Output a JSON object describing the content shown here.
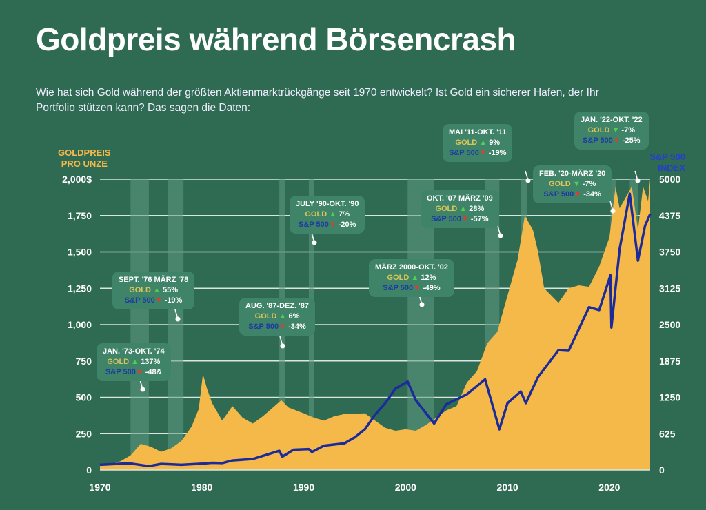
{
  "title": "Goldpreis während Börsencrash",
  "subtitle": "Wie hat sich Gold während der größten Aktienmarktrückgänge seit 1970 entwickelt? Ist Gold ein sicherer Hafen, der Ihr Portfolio stützen kann? Das sagen die Daten:",
  "chart_data": {
    "type": "area",
    "ylabel_left": [
      "GOLDPREIS",
      "PRO UNZE"
    ],
    "ylabel_right": [
      "S&P 500",
      "INDEX"
    ],
    "xlim": [
      1970,
      2024
    ],
    "ylim_left": [
      0,
      2000
    ],
    "ylim_right": [
      0,
      5000
    ],
    "x_ticks": [
      "1970",
      "1980",
      "1990",
      "2000",
      "2010",
      "2020"
    ],
    "left_ticks": [
      "0",
      "250",
      "500",
      "750",
      "1,000",
      "1,250",
      "1,500",
      "1,750",
      "2,000$"
    ],
    "right_ticks": [
      "0",
      "625",
      "1250",
      "1875",
      "2500",
      "3125",
      "3750",
      "4375",
      "5000"
    ],
    "colors": {
      "gold": "#f5b94a",
      "sp500": "#1b2b9c",
      "band": "#5f9a82"
    },
    "series": [
      {
        "name": "Gold",
        "axis": "left",
        "points": [
          [
            1970,
            35
          ],
          [
            1971,
            40
          ],
          [
            1972,
            60
          ],
          [
            1973,
            100
          ],
          [
            1974,
            180
          ],
          [
            1975,
            160
          ],
          [
            1976,
            125
          ],
          [
            1977,
            150
          ],
          [
            1978,
            200
          ],
          [
            1979,
            300
          ],
          [
            1979.7,
            420
          ],
          [
            1980.1,
            660
          ],
          [
            1980.5,
            560
          ],
          [
            1981,
            460
          ],
          [
            1982,
            340
          ],
          [
            1983,
            440
          ],
          [
            1984,
            360
          ],
          [
            1985,
            320
          ],
          [
            1986,
            370
          ],
          [
            1987.8,
            480
          ],
          [
            1988.5,
            430
          ],
          [
            1990,
            390
          ],
          [
            1991,
            360
          ],
          [
            1992,
            340
          ],
          [
            1993,
            370
          ],
          [
            1994,
            385
          ],
          [
            1996,
            390
          ],
          [
            1997,
            340
          ],
          [
            1998,
            290
          ],
          [
            1999,
            270
          ],
          [
            2000,
            280
          ],
          [
            2001,
            270
          ],
          [
            2002,
            310
          ],
          [
            2003,
            360
          ],
          [
            2004,
            410
          ],
          [
            2005,
            440
          ],
          [
            2006,
            600
          ],
          [
            2007,
            680
          ],
          [
            2008,
            870
          ],
          [
            2009,
            950
          ],
          [
            2010,
            1200
          ],
          [
            2011,
            1450
          ],
          [
            2011.7,
            1750
          ],
          [
            2012.5,
            1650
          ],
          [
            2013,
            1500
          ],
          [
            2013.6,
            1250
          ],
          [
            2015,
            1150
          ],
          [
            2016,
            1250
          ],
          [
            2017,
            1270
          ],
          [
            2018,
            1260
          ],
          [
            2019,
            1400
          ],
          [
            2020,
            1600
          ],
          [
            2020.6,
            1950
          ],
          [
            2021,
            1800
          ],
          [
            2022.2,
            1950
          ],
          [
            2022.8,
            1650
          ],
          [
            2023.3,
            1950
          ],
          [
            2023.8,
            1850
          ],
          [
            2024,
            2000
          ]
        ]
      },
      {
        "name": "S&P 500",
        "axis": "right",
        "points": [
          [
            1970,
            90
          ],
          [
            1972.9,
            115
          ],
          [
            1974.8,
            68
          ],
          [
            1976,
            105
          ],
          [
            1978,
            90
          ],
          [
            1980,
            110
          ],
          [
            1981,
            125
          ],
          [
            1982,
            120
          ],
          [
            1983,
            165
          ],
          [
            1985,
            190
          ],
          [
            1987.6,
            330
          ],
          [
            1987.9,
            230
          ],
          [
            1989,
            350
          ],
          [
            1990.5,
            360
          ],
          [
            1990.8,
            310
          ],
          [
            1992,
            420
          ],
          [
            1994,
            460
          ],
          [
            1995,
            560
          ],
          [
            1996,
            700
          ],
          [
            1997,
            950
          ],
          [
            1998,
            1150
          ],
          [
            1999,
            1400
          ],
          [
            2000.2,
            1520
          ],
          [
            2001,
            1200
          ],
          [
            2002.8,
            800
          ],
          [
            2004,
            1130
          ],
          [
            2006,
            1300
          ],
          [
            2007.8,
            1560
          ],
          [
            2009.2,
            700
          ],
          [
            2010,
            1150
          ],
          [
            2011.3,
            1350
          ],
          [
            2011.8,
            1150
          ],
          [
            2013,
            1600
          ],
          [
            2015,
            2060
          ],
          [
            2016,
            2050
          ],
          [
            2018,
            2800
          ],
          [
            2019,
            2750
          ],
          [
            2020.1,
            3350
          ],
          [
            2020.2,
            2450
          ],
          [
            2021,
            3800
          ],
          [
            2022,
            4750
          ],
          [
            2022.8,
            3600
          ],
          [
            2023.5,
            4200
          ],
          [
            2024,
            4400
          ]
        ]
      }
    ],
    "crash_periods": [
      [
        1973,
        1974.8
      ],
      [
        1976.7,
        1978.2
      ],
      [
        1987.6,
        1987.95
      ],
      [
        1990.5,
        1990.8
      ],
      [
        2000.2,
        2002.8
      ],
      [
        2007.8,
        2009.2
      ],
      [
        2011.35,
        2011.8
      ],
      [
        2020.1,
        2020.25
      ],
      [
        2022,
        2022.8
      ]
    ]
  },
  "annotations": [
    {
      "period": "JAN. '73-OKT. '74",
      "gold_label": "GOLD",
      "gold_change": "137%",
      "sp_label": "S&P 500",
      "sp_change": "-48&"
    },
    {
      "period": "SEPT. '76 MÄRZ '78",
      "gold_label": "GOLD",
      "gold_change": "55%",
      "sp_label": "S&P 500",
      "sp_change": "-19%"
    },
    {
      "period": "AUG. '87-DEZ. '87",
      "gold_label": "GOLD",
      "gold_change": "6%",
      "sp_label": "S&P 500",
      "sp_change": "-34%"
    },
    {
      "period": "JULY '90-OKT. '90",
      "gold_label": "GOLD",
      "gold_change": "7%",
      "sp_label": "S&P 500",
      "sp_change": "-20%"
    },
    {
      "period": "MÄRZ 2000-OKT. '02",
      "gold_label": "GOLD",
      "gold_change": "12%",
      "sp_label": "S&P 500",
      "sp_change": "-49%"
    },
    {
      "period": "OKT. '07 MÄRZ '09",
      "gold_label": "GOLD",
      "gold_change": "28%",
      "sp_label": "S&P 500",
      "sp_change": "-57%"
    },
    {
      "period": "MAI '11-OKT. '11",
      "gold_label": "GOLD",
      "gold_change": "9%",
      "sp_label": "S&P 500",
      "sp_change": "-19%"
    },
    {
      "period": "FEB. '20-MÄRZ '20",
      "gold_label": "GOLD",
      "gold_change": "-7%",
      "sp_label": "S&P 500",
      "sp_change": "-34%"
    },
    {
      "period": "JAN. '22-OKT. '22",
      "gold_label": "GOLD",
      "gold_change": "-7%",
      "sp_label": "S&P 500",
      "sp_change": "-25%"
    }
  ]
}
